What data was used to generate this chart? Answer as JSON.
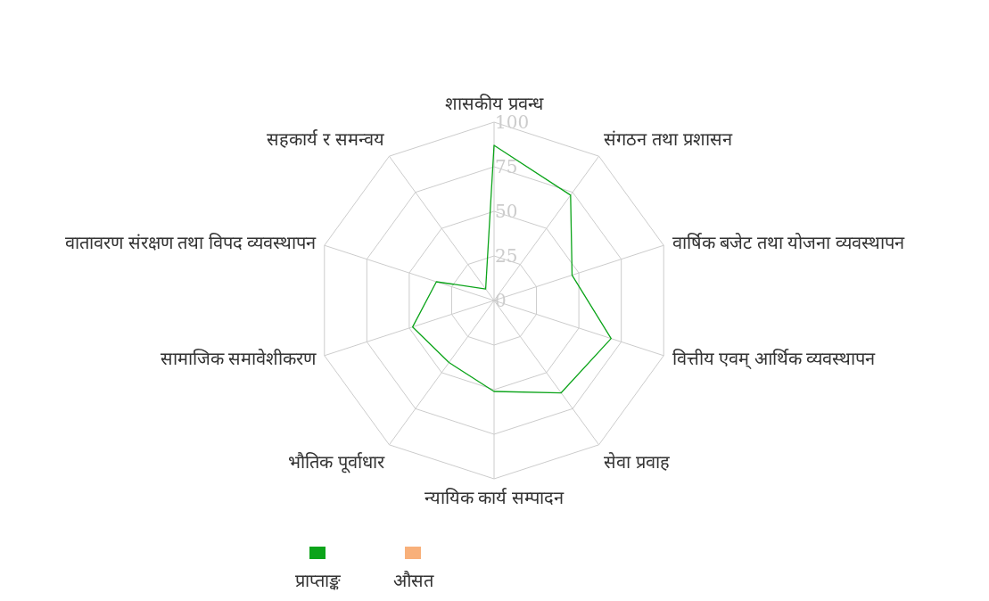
{
  "chart_data": {
    "type": "radar",
    "categories": [
      "शासकीय प्रवन्ध",
      "संगठन तथा प्रशासन",
      "वार्षिक बजेट तथा योजना व्यवस्थापन",
      "वित्तीय एवम् आर्थिक व्यवस्थापन",
      "सेवा प्रवाह",
      "न्यायिक कार्य सम्पादन",
      "भौतिक पूर्वाधार",
      "सामाजिक समावेशीकरण",
      "वातावरण संरक्षण तथा विपद व्यवस्थापन",
      "सहकार्य र समन्वय"
    ],
    "series": [
      {
        "name": "प्राप्ताङ्क",
        "color": "#0ca41a",
        "values": [
          87,
          73,
          46,
          69,
          64,
          51,
          43,
          48,
          34,
          8
        ]
      },
      {
        "name": "औसत",
        "color": "#f8b07a",
        "values": [
          null,
          null,
          null,
          null,
          null,
          null,
          null,
          null,
          null,
          null
        ]
      }
    ],
    "ylim": [
      0,
      100
    ],
    "yticks": [
      0,
      25,
      50,
      75,
      100
    ],
    "grid": true,
    "legend": "bottom"
  }
}
